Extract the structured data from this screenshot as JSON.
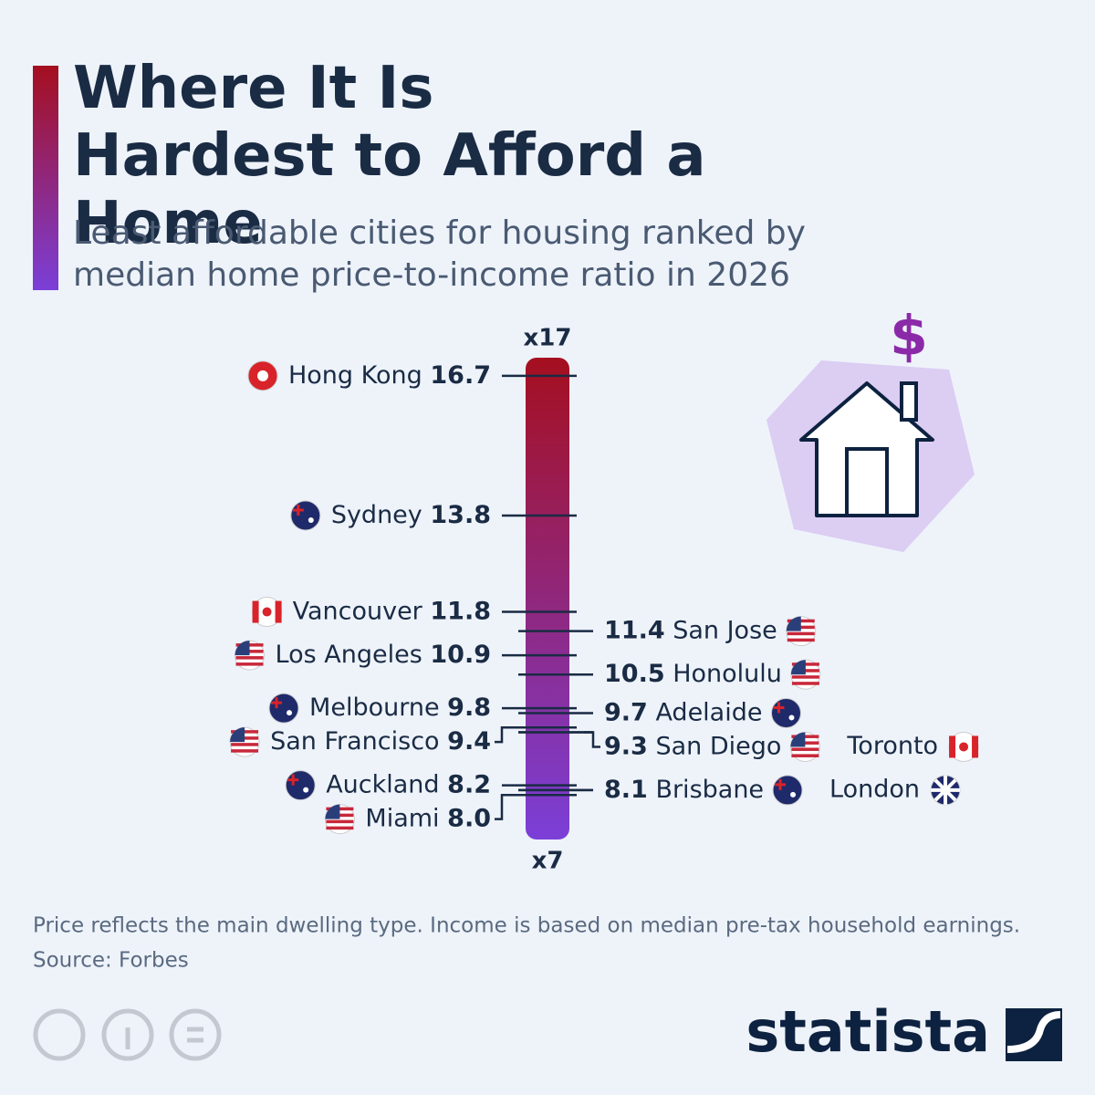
{
  "chart_data": {
    "type": "ranking-scale",
    "title": "Where It Is Hardest to Afford a Home",
    "subtitle": "Least affordable cities for housing ranked by median home price-to-income ratio in 2026",
    "categories": [
      "Hong Kong",
      "Sydney",
      "Vancouver",
      "San Jose",
      "Los Angeles",
      "Honolulu",
      "Melbourne",
      "Adelaide",
      "San Francisco",
      "San Diego",
      "Toronto",
      "Auckland",
      "Brisbane",
      "London",
      "Miami"
    ],
    "values": [
      16.7,
      13.8,
      11.8,
      11.4,
      10.9,
      10.5,
      9.8,
      9.7,
      9.4,
      9.3,
      9.3,
      8.2,
      8.1,
      8.1,
      8.0
    ],
    "value_labels": [
      "16.7",
      "13.8",
      "11.8",
      "11.4",
      "10.9",
      "10.5",
      "9.8",
      "9.7",
      "9.4",
      "9.3",
      null,
      "8.2",
      "8.1",
      null,
      "8.0"
    ],
    "ylim": [
      7,
      17
    ],
    "yticks": [
      {
        "value": 7,
        "label": "x7"
      },
      {
        "value": 17,
        "label": "x17"
      }
    ],
    "colors": [
      "#a50f1f",
      "#7b3fd8"
    ],
    "note": "Price reflects the main dwelling type. Income is based on median pre-tax household earnings.",
    "source": "Source: Forbes",
    "logo": "statista"
  }
}
